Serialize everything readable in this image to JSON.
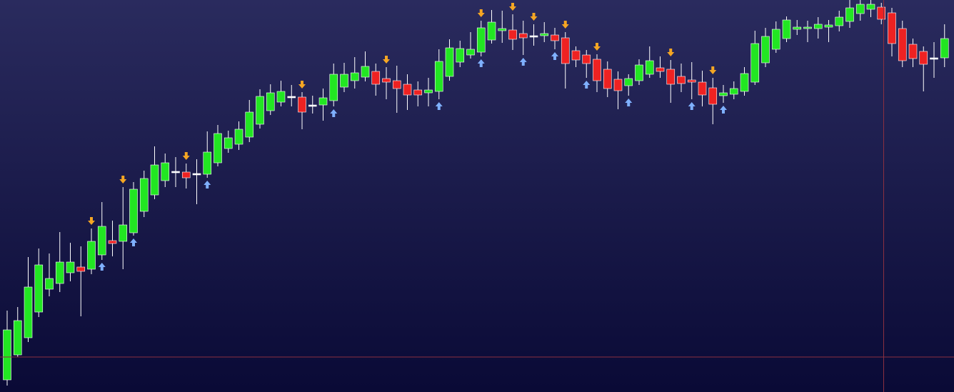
{
  "chart_data": {
    "type": "candlestick",
    "ylim": [
      0,
      549
    ],
    "up_color": "#22e622",
    "down_color": "#ee2222",
    "flat_color": "#ffffff",
    "open": [
      17,
      52,
      76,
      112,
      144,
      152,
      167,
      175,
      172,
      192,
      212,
      211,
      223,
      253,
      276,
      296,
      309,
      308,
      306,
      305,
      321,
      341,
      347,
      357,
      375,
      394,
      406,
      414,
      413,
      402,
      402,
      408,
      427,
      436,
      441,
      449,
      439,
      436,
      431,
      423,
      419,
      421,
      442,
      462,
      472,
      476,
      493,
      506,
      507,
      502,
      499,
      499,
      500,
      496,
      478,
      472,
      466,
      452,
      438,
      429,
      436,
      445,
      454,
      452,
      442,
      437,
      434,
      426,
      415,
      417,
      421,
      434,
      461,
      480,
      495,
      508,
      509,
      509,
      511,
      513,
      519,
      530,
      536,
      539,
      531,
      509,
      487,
      477,
      468,
      468
    ],
    "high": [
      114,
      119,
      189,
      201,
      194,
      224,
      209,
      204,
      229,
      266,
      240,
      287,
      294,
      310,
      344,
      334,
      329,
      320,
      326,
      365,
      374,
      366,
      379,
      409,
      424,
      431,
      436,
      430,
      420,
      415,
      425,
      460,
      461,
      469,
      477,
      460,
      455,
      457,
      445,
      435,
      440,
      480,
      494,
      492,
      504,
      520,
      535,
      534,
      529,
      520,
      515,
      518,
      510,
      504,
      484,
      479,
      473,
      463,
      449,
      445,
      466,
      484,
      470,
      465,
      460,
      462,
      450,
      440,
      430,
      435,
      455,
      506,
      510,
      519,
      526,
      521,
      520,
      525,
      521,
      534,
      549,
      549,
      549,
      545,
      538,
      520,
      495,
      484,
      490,
      515
    ],
    "low": [
      9,
      49,
      70,
      105,
      134,
      140,
      155,
      106,
      165,
      185,
      190,
      172,
      219,
      245,
      270,
      287,
      287,
      285,
      263,
      300,
      316,
      335,
      339,
      350,
      369,
      388,
      400,
      400,
      368,
      390,
      380,
      400,
      420,
      425,
      435,
      415,
      410,
      391,
      395,
      400,
      400,
      410,
      436,
      455,
      467,
      470,
      488,
      489,
      479,
      472,
      485,
      490,
      480,
      425,
      455,
      440,
      420,
      413,
      396,
      415,
      430,
      440,
      440,
      405,
      420,
      410,
      400,
      375,
      405,
      410,
      415,
      430,
      455,
      475,
      490,
      500,
      490,
      495,
      490,
      505,
      510,
      520,
      525,
      515,
      470,
      455,
      455,
      421,
      440,
      455
    ],
    "close": [
      87,
      100,
      147,
      178,
      159,
      182,
      182,
      169,
      211,
      232,
      208,
      234,
      284,
      299,
      318,
      321,
      309,
      300,
      306,
      336,
      362,
      356,
      368,
      392,
      414,
      419,
      421,
      414,
      392,
      402,
      412,
      445,
      445,
      447,
      456,
      431,
      434,
      425,
      416,
      416,
      423,
      463,
      482,
      481,
      480,
      510,
      518,
      509,
      494,
      496,
      499,
      502,
      492,
      460,
      465,
      460,
      436,
      425,
      422,
      439,
      458,
      464,
      449,
      431,
      432,
      434,
      416,
      403,
      419,
      425,
      446,
      488,
      498,
      508,
      521,
      511,
      511,
      515,
      514,
      525,
      538,
      543,
      543,
      522,
      488,
      464,
      467,
      459,
      468,
      495
    ]
  }
}
